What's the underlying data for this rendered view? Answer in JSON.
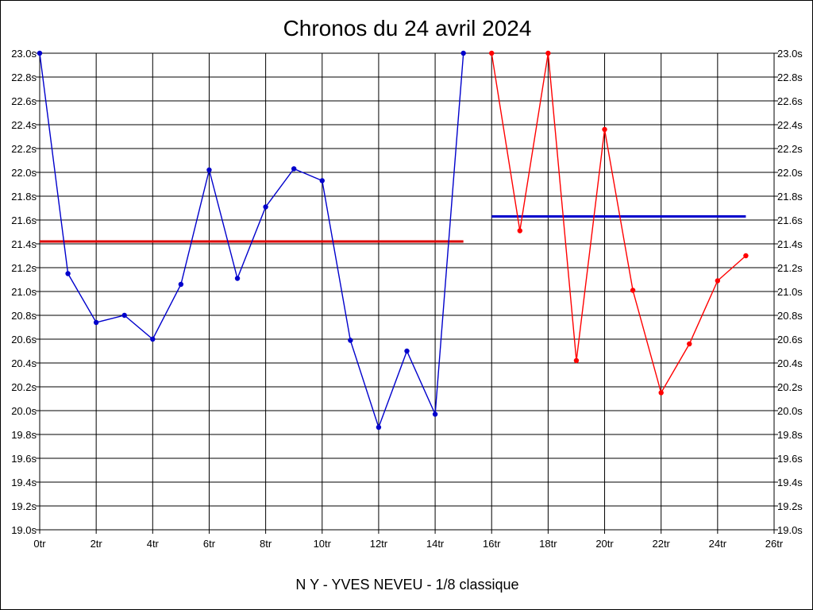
{
  "chart_data": {
    "type": "line",
    "title": "Chronos du 24 avril 2024",
    "footer": "N Y - YVES NEVEU - 1/8 classique",
    "xlim": [
      0,
      26
    ],
    "ylim": [
      19.0,
      23.0
    ],
    "x_ticks": [
      "0tr",
      "2tr",
      "4tr",
      "6tr",
      "8tr",
      "10tr",
      "12tr",
      "14tr",
      "16tr",
      "18tr",
      "20tr",
      "22tr",
      "24tr",
      "26tr"
    ],
    "x_tick_values": [
      0,
      2,
      4,
      6,
      8,
      10,
      12,
      14,
      16,
      18,
      20,
      22,
      24,
      26
    ],
    "y_ticks": [
      "23.0s",
      "22.8s",
      "22.6s",
      "22.4s",
      "22.2s",
      "22.0s",
      "21.8s",
      "21.6s",
      "21.4s",
      "21.2s",
      "21.0s",
      "20.8s",
      "20.6s",
      "20.4s",
      "20.2s",
      "20.0s",
      "19.8s",
      "19.6s",
      "19.4s",
      "19.2s",
      "19.0s"
    ],
    "y_tick_values": [
      23.0,
      22.8,
      22.6,
      22.4,
      22.2,
      22.0,
      21.8,
      21.6,
      21.4,
      21.2,
      21.0,
      20.8,
      20.6,
      20.4,
      20.2,
      20.0,
      19.8,
      19.6,
      19.4,
      19.2,
      19.0
    ],
    "grid": true,
    "series": [
      {
        "color": "#0000cc",
        "x": [
          0,
          1,
          2,
          3,
          4,
          5,
          6,
          7,
          8,
          9,
          10,
          11,
          12,
          13,
          14,
          15
        ],
        "values": [
          23.0,
          21.15,
          20.74,
          20.8,
          20.6,
          21.06,
          22.02,
          21.11,
          21.71,
          22.03,
          21.93,
          20.59,
          19.86,
          20.5,
          19.97,
          23.0
        ]
      },
      {
        "color": "#ff0000",
        "x": [
          16,
          17,
          18,
          19,
          20,
          21,
          22,
          23,
          24,
          25
        ],
        "values": [
          23.0,
          21.51,
          23.0,
          20.42,
          22.36,
          21.01,
          20.15,
          20.56,
          21.09,
          21.3
        ]
      }
    ],
    "reference_lines": [
      {
        "color": "#dd0000",
        "x_start": 0,
        "x_end": 15,
        "value": 21.42
      },
      {
        "color": "#0000cc",
        "x_start": 16,
        "x_end": 25,
        "value": 21.63
      }
    ]
  }
}
